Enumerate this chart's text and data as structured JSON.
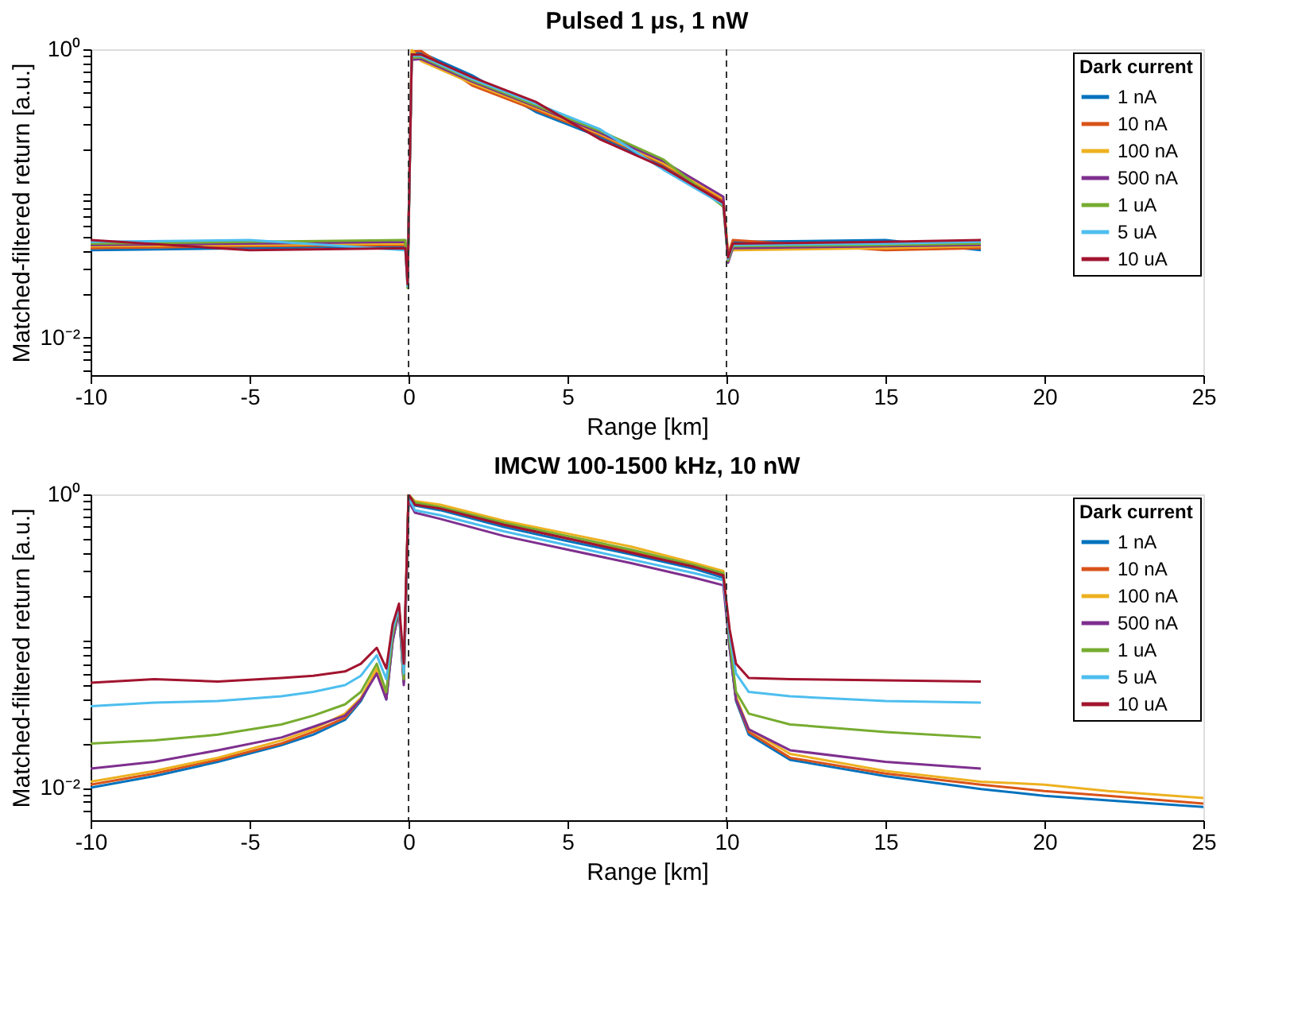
{
  "chart_data": [
    {
      "type": "line",
      "title": "Pulsed 1 μs, 1 nW",
      "xlabel": "Range  [km]",
      "ylabel": "Matched-filtered return  [a.u.]",
      "legend_title": "Dark current",
      "legend": "top right",
      "grid": false,
      "log": "y",
      "xlim": [
        -10,
        25
      ],
      "xticks": [
        -10,
        -5,
        0,
        5,
        10,
        15,
        20,
        25
      ],
      "ylim": [
        0.0055,
        1
      ],
      "yticks": [
        {
          "value": 0.006,
          "label": null
        },
        {
          "value": 0.007,
          "label": null
        },
        {
          "value": 0.008,
          "label": null
        },
        {
          "value": 0.009,
          "label": null
        },
        {
          "value": 0.01,
          "label": "10⁻²"
        },
        {
          "value": 0.02,
          "label": null
        },
        {
          "value": 0.03,
          "label": null
        },
        {
          "value": 0.04,
          "label": null
        },
        {
          "value": 0.05,
          "label": null
        },
        {
          "value": 0.06,
          "label": null
        },
        {
          "value": 0.07,
          "label": null
        },
        {
          "value": 0.08,
          "label": null
        },
        {
          "value": 0.09,
          "label": null
        },
        {
          "value": 0.1,
          "label": null
        },
        {
          "value": 0.2,
          "label": null
        },
        {
          "value": 0.3,
          "label": null
        },
        {
          "value": 0.4,
          "label": null
        },
        {
          "value": 0.5,
          "label": null
        },
        {
          "value": 0.6,
          "label": null
        },
        {
          "value": 0.7,
          "label": null
        },
        {
          "value": 0.8,
          "label": null
        },
        {
          "value": 0.9,
          "label": null
        },
        {
          "value": 1,
          "label": "10⁰"
        }
      ],
      "ref_lines": [
        {
          "axis": "x",
          "value": 0,
          "line_style": "dashed",
          "color": "#333333"
        },
        {
          "axis": "x",
          "value": 10,
          "line_style": "dashed",
          "color": "#333333"
        }
      ],
      "x": [
        -10,
        -5,
        -0.1,
        -0.03,
        0.1,
        0.4,
        2,
        4,
        6,
        8,
        9.9,
        10.05,
        10.2,
        15,
        18
      ],
      "series": [
        {
          "name": "1 nA",
          "color": "#0072bd",
          "values": [
            0.0405,
            0.0418,
            0.0431,
            0.024,
            0.938,
            0.945,
            0.659,
            0.368,
            0.247,
            0.157,
            0.088,
            0.0367,
            0.0462,
            0.0475,
            0.0405
          ]
        },
        {
          "name": "10 nA",
          "color": "#d95319",
          "values": [
            0.0418,
            0.0431,
            0.044,
            0.0245,
            0.966,
            0.972,
            0.561,
            0.38,
            0.255,
            0.16,
            0.0898,
            0.0378,
            0.0475,
            0.0405,
            0.0418
          ]
        },
        {
          "name": "100 nA",
          "color": "#edb120",
          "values": [
            0.0431,
            0.044,
            0.0449,
            0.0252,
            0.994,
            0.828,
            0.58,
            0.392,
            0.26,
            0.163,
            0.0924,
            0.0389,
            0.0405,
            0.0418,
            0.0431
          ]
        },
        {
          "name": "500 nA",
          "color": "#7e2f8e",
          "values": [
            0.044,
            0.0449,
            0.0462,
            0.0259,
            0.846,
            0.855,
            0.598,
            0.4,
            0.265,
            0.168,
            0.095,
            0.0331,
            0.0418,
            0.0431,
            0.044
          ]
        },
        {
          "name": "1 uA",
          "color": "#77ac30",
          "values": [
            0.0449,
            0.0462,
            0.0475,
            0.0221,
            0.874,
            0.882,
            0.61,
            0.408,
            0.273,
            0.173,
            0.081,
            0.0342,
            0.0431,
            0.044,
            0.0449
          ]
        },
        {
          "name": "5 uA",
          "color": "#4dbeee",
          "values": [
            0.0462,
            0.0475,
            0.0405,
            0.0228,
            0.902,
            0.9,
            0.622,
            0.42,
            0.281,
            0.147,
            0.0836,
            0.0353,
            0.044,
            0.0449,
            0.0462
          ]
        },
        {
          "name": "10 uA",
          "color": "#a2142f",
          "values": [
            0.0475,
            0.0405,
            0.0418,
            0.0235,
            0.92,
            0.918,
            0.641,
            0.432,
            0.239,
            0.152,
            0.0862,
            0.036,
            0.0449,
            0.0462,
            0.0475
          ]
        }
      ]
    },
    {
      "type": "line",
      "title": "IMCW 100-1500 kHz, 10 nW",
      "xlabel": "Range  [km]",
      "ylabel": "Matched-filtered return  [a.u.]",
      "legend_title": "Dark current",
      "legend": "top right",
      "grid": false,
      "log": "y",
      "xlim": [
        -10,
        25
      ],
      "xticks": [
        -10,
        -5,
        0,
        5,
        10,
        15,
        20,
        25
      ],
      "ylim": [
        0.006,
        1
      ],
      "yticks": [
        {
          "value": 0.007,
          "label": null
        },
        {
          "value": 0.008,
          "label": null
        },
        {
          "value": 0.009,
          "label": null
        },
        {
          "value": 0.01,
          "label": "10⁻²"
        },
        {
          "value": 0.02,
          "label": null
        },
        {
          "value": 0.03,
          "label": null
        },
        {
          "value": 0.04,
          "label": null
        },
        {
          "value": 0.05,
          "label": null
        },
        {
          "value": 0.06,
          "label": null
        },
        {
          "value": 0.07,
          "label": null
        },
        {
          "value": 0.08,
          "label": null
        },
        {
          "value": 0.09,
          "label": null
        },
        {
          "value": 0.1,
          "label": null
        },
        {
          "value": 0.2,
          "label": null
        },
        {
          "value": 0.3,
          "label": null
        },
        {
          "value": 0.4,
          "label": null
        },
        {
          "value": 0.5,
          "label": null
        },
        {
          "value": 0.6,
          "label": null
        },
        {
          "value": 0.7,
          "label": null
        },
        {
          "value": 0.8,
          "label": null
        },
        {
          "value": 0.9,
          "label": null
        },
        {
          "value": 1,
          "label": "10⁰"
        }
      ],
      "ref_lines": [
        {
          "axis": "x",
          "value": 0,
          "line_style": "dashed",
          "color": "#333333"
        },
        {
          "axis": "x",
          "value": 10,
          "line_style": "dashed",
          "color": "#333333"
        }
      ],
      "x": [
        -10,
        -8,
        -6,
        -4,
        -3,
        -2,
        -1.5,
        -1,
        -0.7,
        -0.5,
        -0.3,
        -0.15,
        0,
        0.2,
        1,
        3,
        5,
        7,
        9,
        9.9,
        10.1,
        10.3,
        10.7,
        12,
        15,
        18,
        20,
        22,
        25
      ],
      "series": [
        {
          "name": "1 nA",
          "color": "#0072bd",
          "values": [
            0.01,
            0.012,
            0.015,
            0.0195,
            0.023,
            0.029,
            0.039,
            0.062,
            0.04,
            0.1,
            0.165,
            0.052,
            0.97,
            0.84,
            0.78,
            0.6,
            0.48,
            0.39,
            0.31,
            0.27,
            0.09,
            0.039,
            0.023,
            0.0155,
            0.012,
            0.0098,
            0.0088,
            0.0082,
            0.0074
          ]
        },
        {
          "name": "10 nA",
          "color": "#d95319",
          "values": [
            0.0105,
            0.0125,
            0.0155,
            0.02,
            0.024,
            0.03,
            0.04,
            0.063,
            0.041,
            0.105,
            0.17,
            0.053,
            0.98,
            0.86,
            0.8,
            0.62,
            0.5,
            0.41,
            0.32,
            0.28,
            0.095,
            0.04,
            0.024,
            0.016,
            0.0125,
            0.0105,
            0.0095,
            0.0088,
            0.0078
          ]
        },
        {
          "name": "100 nA",
          "color": "#edb120",
          "values": [
            0.011,
            0.013,
            0.016,
            0.021,
            0.025,
            0.032,
            0.041,
            0.065,
            0.042,
            0.11,
            0.17,
            0.055,
            1.0,
            0.9,
            0.85,
            0.66,
            0.54,
            0.44,
            0.34,
            0.3,
            0.1,
            0.042,
            0.025,
            0.017,
            0.013,
            0.011,
            0.0105,
            0.0095,
            0.0085
          ]
        },
        {
          "name": "500 nA",
          "color": "#7e2f8e",
          "x": [
            -10,
            -8,
            -6,
            -4,
            -3,
            -2,
            -1.5,
            -1,
            -0.7,
            -0.5,
            -0.3,
            -0.15,
            0,
            0.2,
            1,
            3,
            5,
            7,
            9,
            9.9,
            10.1,
            10.3,
            10.7,
            12,
            15,
            18
          ],
          "values": [
            0.0135,
            0.015,
            0.018,
            0.022,
            0.026,
            0.031,
            0.04,
            0.06,
            0.04,
            0.1,
            0.16,
            0.05,
            0.9,
            0.75,
            0.68,
            0.52,
            0.42,
            0.34,
            0.27,
            0.24,
            0.09,
            0.04,
            0.025,
            0.018,
            0.015,
            0.0135
          ]
        },
        {
          "name": "1 uA",
          "color": "#77ac30",
          "x": [
            -10,
            -8,
            -6,
            -4,
            -3,
            -2,
            -1.5,
            -1,
            -0.7,
            -0.5,
            -0.3,
            -0.15,
            0,
            0.2,
            1,
            3,
            5,
            7,
            9,
            9.9,
            10.1,
            10.3,
            10.7,
            12,
            15,
            18
          ],
          "values": [
            0.02,
            0.021,
            0.023,
            0.027,
            0.031,
            0.037,
            0.045,
            0.07,
            0.045,
            0.11,
            0.17,
            0.055,
            1.0,
            0.88,
            0.82,
            0.64,
            0.52,
            0.42,
            0.33,
            0.29,
            0.1,
            0.045,
            0.032,
            0.027,
            0.024,
            0.022
          ]
        },
        {
          "name": "5 uA",
          "color": "#4dbeee",
          "x": [
            -10,
            -8,
            -6,
            -4,
            -3,
            -2,
            -1.5,
            -1,
            -0.7,
            -0.5,
            -0.3,
            -0.15,
            0,
            0.2,
            1,
            3,
            5,
            7,
            9,
            9.9,
            10.1,
            10.3,
            10.7,
            12,
            15,
            18
          ],
          "values": [
            0.036,
            0.038,
            0.039,
            0.042,
            0.045,
            0.05,
            0.058,
            0.08,
            0.055,
            0.12,
            0.17,
            0.06,
            0.95,
            0.78,
            0.72,
            0.56,
            0.45,
            0.36,
            0.29,
            0.26,
            0.11,
            0.06,
            0.045,
            0.042,
            0.039,
            0.038
          ]
        },
        {
          "name": "10 uA",
          "color": "#a2142f",
          "x": [
            -10,
            -8,
            -6,
            -4,
            -3,
            -2,
            -1.5,
            -1,
            -0.7,
            -0.5,
            -0.3,
            -0.15,
            0,
            0.2,
            1,
            3,
            5,
            7,
            9,
            9.9,
            10.1,
            10.3,
            10.7,
            12,
            15,
            18
          ],
          "values": [
            0.052,
            0.055,
            0.053,
            0.056,
            0.058,
            0.062,
            0.07,
            0.09,
            0.065,
            0.13,
            0.18,
            0.07,
            1.0,
            0.85,
            0.8,
            0.62,
            0.5,
            0.4,
            0.32,
            0.28,
            0.12,
            0.07,
            0.056,
            0.055,
            0.054,
            0.053
          ]
        }
      ]
    }
  ]
}
